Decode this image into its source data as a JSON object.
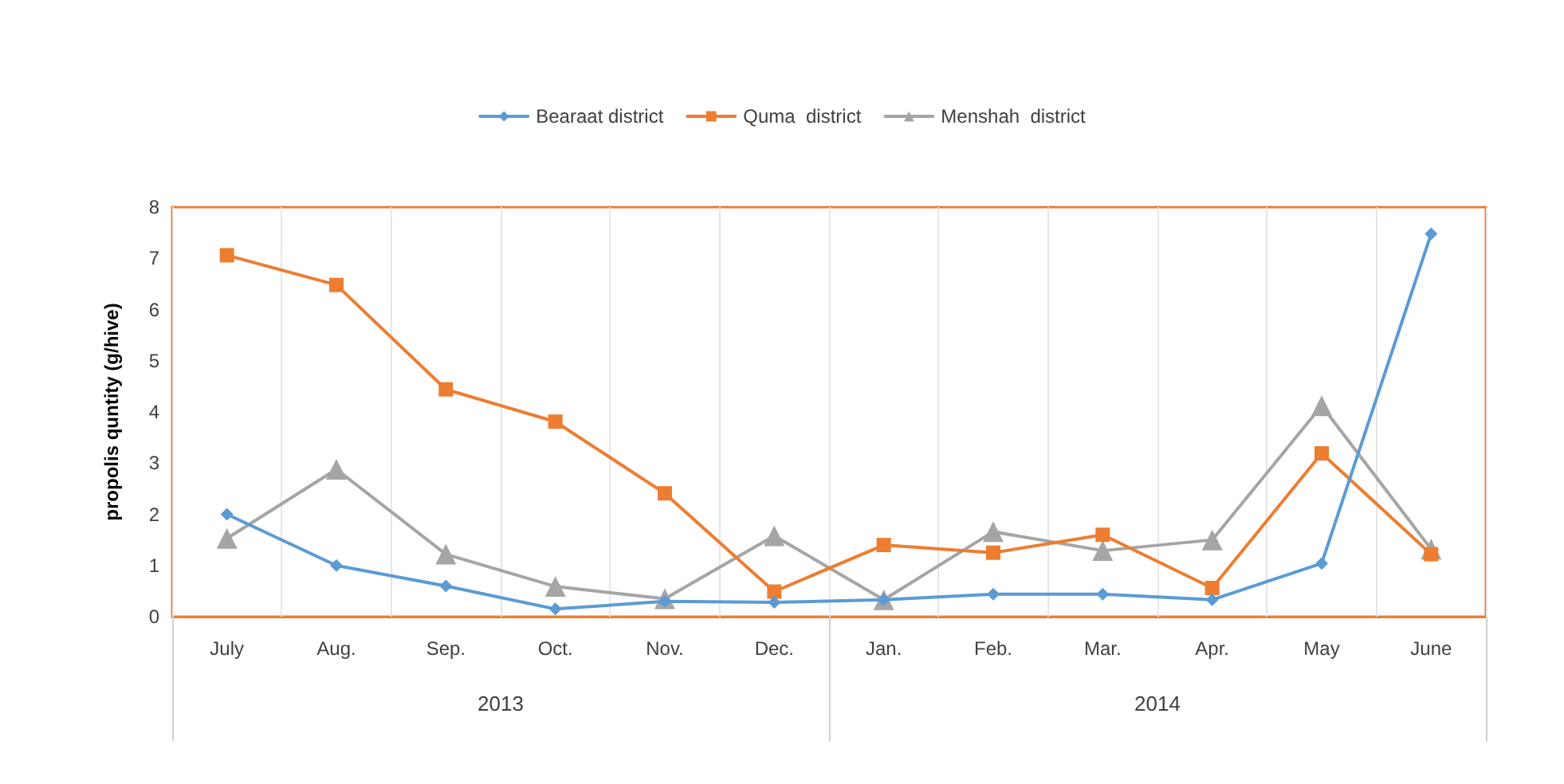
{
  "chart_data": {
    "type": "line",
    "ylabel": "propolis quntity (g/hive)",
    "categories": [
      "July",
      "Aug.",
      "Sep.",
      "Oct.",
      "Nov.",
      "Dec.",
      "Jan.",
      "Feb.",
      "Mar.",
      "Apr.",
      "May",
      "June"
    ],
    "annotations": [
      "2013",
      "2014"
    ],
    "series": [
      {
        "name": "Bearaat district",
        "color": "#5b9bd5",
        "marker": "diamond",
        "values": [
          2.0,
          1.0,
          0.6,
          0.15,
          0.3,
          0.28,
          0.33,
          0.44,
          0.44,
          0.33,
          1.04,
          7.48
        ]
      },
      {
        "name": "Quma  district",
        "color": "#ed7d31",
        "marker": "square",
        "values": [
          7.06,
          6.48,
          4.44,
          3.81,
          2.41,
          0.49,
          1.4,
          1.25,
          1.6,
          0.56,
          3.19,
          1.22
        ]
      },
      {
        "name": "Menshah  district",
        "color": "#a5a5a5",
        "marker": "triangle",
        "values": [
          1.53,
          2.88,
          1.22,
          0.59,
          0.35,
          1.58,
          0.33,
          1.66,
          1.29,
          1.5,
          4.12,
          1.32
        ]
      }
    ],
    "ylim": [
      0,
      8
    ],
    "yticks": [
      0,
      1,
      2,
      3,
      4,
      5,
      6,
      7,
      8
    ],
    "grid": "x",
    "legend": "top",
    "line_style": "solid"
  }
}
